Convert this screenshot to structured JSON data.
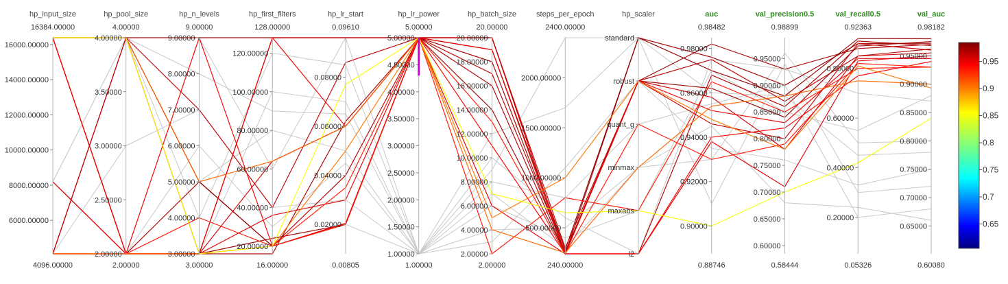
{
  "chart_data": {
    "type": "parallel_coordinates",
    "colorbar": {
      "ticks": [
        "0.95",
        "0.9",
        "0.85",
        "0.8",
        "0.75",
        "0.7",
        "0.65"
      ],
      "tick_values": [
        0.95,
        0.9,
        0.85,
        0.8,
        0.75,
        0.7,
        0.65
      ],
      "range": [
        0.605,
        0.985
      ],
      "colormap": "jet"
    },
    "axes": [
      {
        "name": "hp_input_size",
        "label_color": "#444444",
        "max_label": "16384.00000",
        "min_label": "4096.00000",
        "range": [
          4096,
          16384
        ],
        "ticks": [
          {
            "v": 6000,
            "t": "6000.00000"
          },
          {
            "v": 8000,
            "t": "8000.00000"
          },
          {
            "v": 10000,
            "t": "10000.00000"
          },
          {
            "v": 12000,
            "t": "12000.00000"
          },
          {
            "v": 14000,
            "t": "14000.00000"
          },
          {
            "v": 16000,
            "t": "16000.00000"
          }
        ]
      },
      {
        "name": "hp_pool_size",
        "label_color": "#444444",
        "max_label": "4.00000",
        "min_label": "2.00000",
        "range": [
          2,
          4
        ],
        "ticks": [
          {
            "v": 2,
            "t": "2.00000"
          },
          {
            "v": 2.5,
            "t": "2.50000"
          },
          {
            "v": 3,
            "t": "3.00000"
          },
          {
            "v": 3.5,
            "t": "3.50000"
          },
          {
            "v": 4,
            "t": "4.00000"
          }
        ]
      },
      {
        "name": "hp_n_levels",
        "label_color": "#444444",
        "max_label": "9.00000",
        "min_label": "3.00000",
        "range": [
          3,
          9
        ],
        "ticks": [
          {
            "v": 3,
            "t": "3.00000"
          },
          {
            "v": 4,
            "t": "4.00000"
          },
          {
            "v": 5,
            "t": "5.00000"
          },
          {
            "v": 6,
            "t": "6.00000"
          },
          {
            "v": 7,
            "t": "7.00000"
          },
          {
            "v": 8,
            "t": "8.00000"
          },
          {
            "v": 9,
            "t": "9.00000"
          }
        ]
      },
      {
        "name": "hp_first_filters",
        "label_color": "#444444",
        "max_label": "128.00000",
        "min_label": "16.00000",
        "range": [
          16,
          128
        ],
        "ticks": [
          {
            "v": 20,
            "t": "20.00000"
          },
          {
            "v": 40,
            "t": "40.00000"
          },
          {
            "v": 60,
            "t": "60.00000"
          },
          {
            "v": 80,
            "t": "80.00000"
          },
          {
            "v": 100,
            "t": "100.00000"
          },
          {
            "v": 120,
            "t": "120.00000"
          }
        ]
      },
      {
        "name": "hp_lr_start",
        "label_color": "#444444",
        "max_label": "0.09610",
        "min_label": "0.00805",
        "range": [
          0.00805,
          0.0961
        ],
        "ticks": [
          {
            "v": 0.02,
            "t": "0.02000"
          },
          {
            "v": 0.04,
            "t": "0.04000"
          },
          {
            "v": 0.06,
            "t": "0.06000"
          },
          {
            "v": 0.08,
            "t": "0.08000"
          }
        ]
      },
      {
        "name": "hp_lr_power",
        "label_color": "#444444",
        "max_label": "5.00000",
        "min_label": "1.00000",
        "range": [
          1,
          5
        ],
        "ticks": [
          {
            "v": 1,
            "t": "1.00000"
          },
          {
            "v": 1.5,
            "t": "1.50000"
          },
          {
            "v": 2,
            "t": "2.00000"
          },
          {
            "v": 2.5,
            "t": "2.50000"
          },
          {
            "v": 3,
            "t": "3.00000"
          },
          {
            "v": 3.5,
            "t": "3.50000"
          },
          {
            "v": 4,
            "t": "4.00000"
          },
          {
            "v": 4.5,
            "t": "4.50000"
          },
          {
            "v": 5,
            "t": "5.00000"
          }
        ],
        "brush": [
          4.3,
          5.0
        ]
      },
      {
        "name": "hp_batch_size",
        "label_color": "#444444",
        "max_label": "20.00000",
        "min_label": "2.00000",
        "range": [
          2,
          20
        ],
        "ticks": [
          {
            "v": 2,
            "t": "2.00000"
          },
          {
            "v": 4,
            "t": "4.00000"
          },
          {
            "v": 6,
            "t": "6.00000"
          },
          {
            "v": 8,
            "t": "8.00000"
          },
          {
            "v": 10,
            "t": "10.00000"
          },
          {
            "v": 12,
            "t": "12.00000"
          },
          {
            "v": 14,
            "t": "14.00000"
          },
          {
            "v": 16,
            "t": "16.00000"
          },
          {
            "v": 18,
            "t": "18.00000"
          },
          {
            "v": 20,
            "t": "20.00000"
          }
        ]
      },
      {
        "name": "steps_per_epoch",
        "label_color": "#444444",
        "max_label": "2400.00000",
        "min_label": "240.00000",
        "range": [
          240,
          2400
        ],
        "ticks": [
          {
            "v": 500,
            "t": "500.00000"
          },
          {
            "v": 1000,
            "t": "1000.00000"
          },
          {
            "v": 1500,
            "t": "1500.00000"
          },
          {
            "v": 2000,
            "t": "2000.00000"
          }
        ]
      },
      {
        "name": "hp_scaler",
        "label_color": "#444444",
        "max_label": "",
        "min_label": "",
        "range": [
          0,
          5
        ],
        "categorical": true,
        "ticks": [
          {
            "v": 5,
            "t": "standard"
          },
          {
            "v": 4,
            "t": "robust"
          },
          {
            "v": 3,
            "t": "quant_g"
          },
          {
            "v": 2,
            "t": "minmax"
          },
          {
            "v": 1,
            "t": "maxabs"
          },
          {
            "v": 0,
            "t": "l2"
          }
        ]
      },
      {
        "name": "auc",
        "label_color": "#2e8b1e",
        "max_label": "0.98482",
        "min_label": "0.88746",
        "range": [
          0.88746,
          0.98482
        ],
        "ticks": [
          {
            "v": 0.9,
            "t": "0.90000"
          },
          {
            "v": 0.92,
            "t": "0.92000"
          },
          {
            "v": 0.94,
            "t": "0.94000"
          },
          {
            "v": 0.96,
            "t": "0.96000"
          },
          {
            "v": 0.98,
            "t": "0.98000"
          }
        ]
      },
      {
        "name": "val_precision0.5",
        "label_color": "#2e8b1e",
        "max_label": "0.98899",
        "min_label": "0.58444",
        "range": [
          0.58444,
          0.98899
        ],
        "ticks": [
          {
            "v": 0.6,
            "t": "0.60000"
          },
          {
            "v": 0.65,
            "t": "0.65000"
          },
          {
            "v": 0.7,
            "t": "0.70000"
          },
          {
            "v": 0.75,
            "t": "0.75000"
          },
          {
            "v": 0.8,
            "t": "0.80000"
          },
          {
            "v": 0.85,
            "t": "0.85000"
          },
          {
            "v": 0.9,
            "t": "0.90000"
          },
          {
            "v": 0.95,
            "t": "0.95000"
          }
        ]
      },
      {
        "name": "val_recall0.5",
        "label_color": "#2e8b1e",
        "max_label": "0.92363",
        "min_label": "0.05326",
        "range": [
          0.05326,
          0.92363
        ],
        "ticks": [
          {
            "v": 0.2,
            "t": "0.20000"
          },
          {
            "v": 0.4,
            "t": "0.40000"
          },
          {
            "v": 0.6,
            "t": "0.60000"
          },
          {
            "v": 0.8,
            "t": "0.80000"
          }
        ]
      },
      {
        "name": "val_auc",
        "label_color": "#2e8b1e",
        "max_label": "0.98182",
        "min_label": "0.60080",
        "range": [
          0.6008,
          0.98182
        ],
        "ticks": [
          {
            "v": 0.65,
            "t": "0.65000"
          },
          {
            "v": 0.7,
            "t": "0.70000"
          },
          {
            "v": 0.75,
            "t": "0.75000"
          },
          {
            "v": 0.8,
            "t": "0.80000"
          },
          {
            "v": 0.85,
            "t": "0.85000"
          },
          {
            "v": 0.9,
            "t": "0.90000"
          },
          {
            "v": 0.95,
            "t": "0.95000"
          }
        ]
      }
    ],
    "highlighted_runs": [
      [
        16384,
        4,
        9,
        128,
        0.0961,
        5,
        20,
        240,
        4,
        0.982,
        0.93,
        0.88,
        0.97
      ],
      [
        16384,
        2,
        3,
        16,
        0.062,
        5,
        18,
        240,
        5,
        0.976,
        0.9,
        0.9,
        0.972
      ],
      [
        4096,
        4,
        7,
        40,
        0.086,
        5,
        17,
        260,
        4,
        0.975,
        0.87,
        0.85,
        0.962
      ],
      [
        8192,
        2,
        5,
        20,
        0.04,
        5,
        16,
        240,
        0,
        0.968,
        0.86,
        0.91,
        0.968
      ],
      [
        4096,
        2,
        3,
        24,
        0.02,
        5,
        14,
        250,
        4,
        0.962,
        0.84,
        0.89,
        0.975
      ],
      [
        16384,
        4,
        5,
        20,
        0.0205,
        5,
        19,
        280,
        5,
        0.97,
        0.88,
        0.92,
        0.98
      ],
      [
        4096,
        2,
        3,
        64,
        0.06,
        5,
        20,
        240,
        4,
        0.958,
        0.78,
        0.85,
        0.955
      ],
      [
        16384,
        2,
        3,
        36,
        0.03,
        5,
        6,
        240,
        0,
        0.938,
        0.71,
        0.83,
        0.95
      ],
      [
        4096,
        4,
        3,
        128,
        0.0961,
        5,
        20,
        300,
        4,
        0.946,
        0.8,
        0.9,
        0.96
      ],
      [
        16384,
        2,
        9,
        20,
        0.0205,
        5,
        11,
        240,
        0,
        0.94,
        0.82,
        0.77,
        0.94
      ],
      [
        4096,
        2,
        4,
        20,
        0.02,
        5,
        13,
        240,
        3,
        0.93,
        0.79,
        0.82,
        0.93
      ],
      [
        8192,
        2,
        3,
        128,
        0.06,
        5,
        19,
        240,
        4,
        0.952,
        0.83,
        0.84,
        0.945
      ],
      [
        4096,
        2,
        3,
        20,
        0.035,
        5,
        2,
        800,
        1,
        0.965,
        0.85,
        0.8,
        0.93
      ],
      [
        16384,
        4,
        5,
        64,
        0.06,
        5,
        4,
        250,
        2,
        0.954,
        0.88,
        0.75,
        0.9
      ],
      [
        4096,
        2,
        3,
        20,
        0.05,
        5,
        5,
        1000,
        4,
        0.948,
        0.78,
        0.81,
        0.893
      ],
      [
        16384,
        4,
        3,
        20,
        0.077,
        5,
        7,
        650,
        1,
        0.9,
        0.7,
        0.42,
        0.84
      ]
    ],
    "background_runs": [
      [
        4096,
        2,
        9,
        60,
        0.0961,
        1,
        9,
        2400,
        5,
        0.91,
        0.94,
        0.3,
        0.72
      ],
      [
        8192,
        4,
        3,
        100,
        0.07,
        1,
        4,
        500,
        2,
        0.93,
        0.96,
        0.5,
        0.8
      ],
      [
        16384,
        2,
        5,
        80,
        0.05,
        1,
        8,
        800,
        3,
        0.955,
        0.9,
        0.2,
        0.68
      ],
      [
        4096,
        3,
        7,
        40,
        0.03,
        1,
        6,
        400,
        1,
        0.97,
        0.85,
        0.55,
        0.88
      ],
      [
        8192,
        2,
        3,
        20,
        0.02,
        1,
        3,
        1100,
        4,
        0.935,
        0.76,
        0.33,
        0.75
      ],
      [
        16384,
        4,
        4,
        120,
        0.085,
        1,
        10,
        600,
        0,
        0.975,
        0.93,
        0.7,
        0.87
      ],
      [
        4096,
        2,
        6,
        30,
        0.045,
        1,
        7,
        300,
        2,
        0.945,
        0.68,
        0.24,
        0.66
      ],
      [
        8192,
        4,
        8,
        90,
        0.065,
        1,
        12,
        1700,
        5,
        0.96,
        0.88,
        0.45,
        0.78
      ]
    ]
  }
}
